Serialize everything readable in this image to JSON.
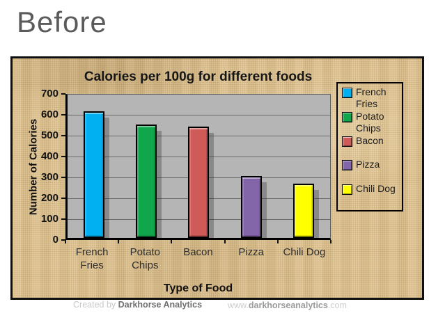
{
  "page": {
    "title": "Before"
  },
  "chart_data": {
    "type": "bar",
    "title": "Calories per 100g for different foods",
    "xlabel": "Type of Food",
    "ylabel": "Number of Calories",
    "categories": [
      "French Fries",
      "Potato Chips",
      "Bacon",
      "Pizza",
      "Chili Dog"
    ],
    "values": [
      607,
      542,
      533,
      296,
      260
    ],
    "colors": [
      "#00b0f0",
      "#10a74c",
      "#ce5b58",
      "#8365a9",
      "#ffff00"
    ],
    "ylim": [
      0,
      700
    ],
    "ytick_step": 100,
    "grid": "horizontal",
    "legend_position": "right",
    "legend_entries": [
      "French Fries",
      "Potato Chips",
      "Bacon",
      "Pizza",
      "Chili Dog"
    ],
    "plot_bg_color": "#b5b5b5",
    "gridline_color": "#6a6a6a",
    "frame_bg_color": "#dfc28e"
  },
  "footer": {
    "created_prefix": "Created by ",
    "created_brand": "Darkhorse Analytics",
    "url_prefix": "www.",
    "url_brand": "darkhorseanalytics",
    "url_suffix": ".com"
  }
}
